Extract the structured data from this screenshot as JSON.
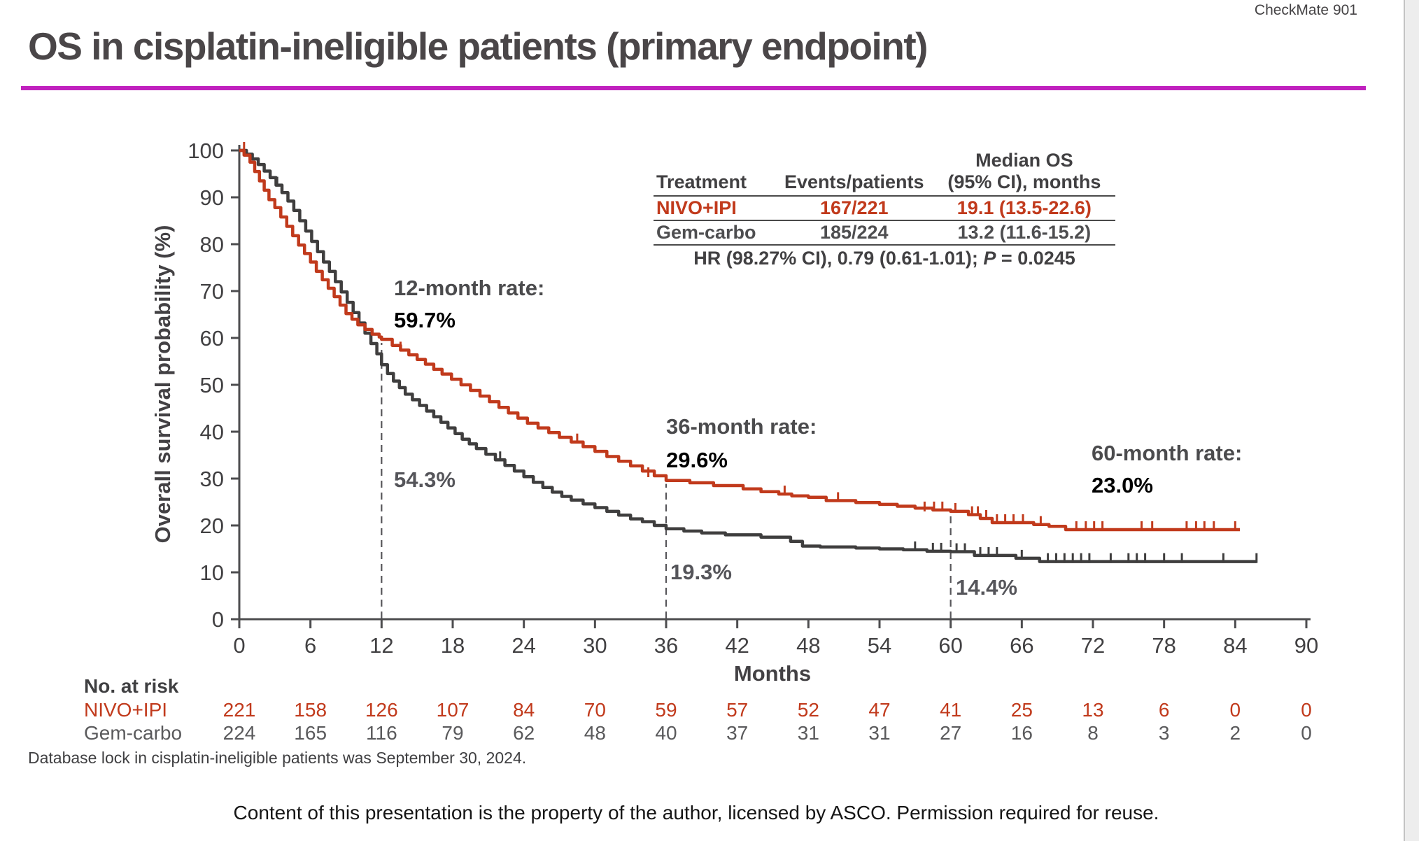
{
  "header": {
    "trial_tag": "CheckMate 901",
    "title": "OS in cisplatin-ineligible patients (primary endpoint)",
    "rule_color": "#C021BE"
  },
  "stats_table": {
    "col_headers": [
      "Treatment",
      "Events/patients",
      "Median OS",
      "(95% CI), months"
    ],
    "rows": [
      {
        "treatment": "NIVO+IPI",
        "events": "167/221",
        "median": "19.1 (13.5-22.6)"
      },
      {
        "treatment": "Gem-carbo",
        "events": "185/224",
        "median": "13.2 (11.6-15.2)"
      }
    ],
    "hr_prefix": "HR (98.27% CI), 0.79 (0.61-1.01); ",
    "hr_p": "P",
    "hr_suffix": " = 0.0245"
  },
  "chart_data": {
    "type": "line",
    "subtype": "kaplan-meier-step",
    "xlabel": "Months",
    "ylabel": "Overall survival probability (%)",
    "xlim": [
      0,
      90
    ],
    "ylim": [
      0,
      100
    ],
    "x_ticks": [
      0,
      6,
      12,
      18,
      24,
      30,
      36,
      42,
      48,
      54,
      60,
      66,
      72,
      78,
      84,
      90
    ],
    "y_ticks": [
      0,
      10,
      20,
      30,
      40,
      50,
      60,
      70,
      80,
      90,
      100
    ],
    "grid": false,
    "axis_color": "#4D4D4F",
    "tick_label_color": "#414042",
    "dashed_markers": [
      {
        "month": 12,
        "top": 59.7
      },
      {
        "month": 36,
        "top": 29.6
      },
      {
        "month": 60,
        "top": 23.0
      }
    ],
    "annotations": [
      {
        "label": "12-month rate:",
        "nivo": "59.7%",
        "gem": "54.3%"
      },
      {
        "label": "36-month rate:",
        "nivo": "29.6%",
        "gem": "19.3%"
      },
      {
        "label": "60-month rate:",
        "nivo": "23.0%",
        "gem": "14.4%"
      }
    ],
    "series": [
      {
        "name": "Gem-carbo",
        "color": "#3F3E3E",
        "points": [
          [
            0,
            100
          ],
          [
            0.6,
            99.2
          ],
          [
            1.1,
            98.2
          ],
          [
            1.6,
            97
          ],
          [
            2.1,
            95.6
          ],
          [
            2.6,
            94.2
          ],
          [
            3.1,
            92.6
          ],
          [
            3.6,
            91
          ],
          [
            4.1,
            89.2
          ],
          [
            4.6,
            87.2
          ],
          [
            5.1,
            85
          ],
          [
            5.6,
            82.8
          ],
          [
            6.1,
            80.6
          ],
          [
            6.6,
            78.4
          ],
          [
            7.1,
            76.2
          ],
          [
            7.6,
            74.2
          ],
          [
            8.1,
            72
          ],
          [
            8.6,
            69.8
          ],
          [
            9.1,
            67.6
          ],
          [
            9.6,
            65.4
          ],
          [
            10.1,
            63.2
          ],
          [
            10.6,
            61
          ],
          [
            11.1,
            58.8
          ],
          [
            11.6,
            56.6
          ],
          [
            12,
            54.3
          ],
          [
            12.5,
            52.4
          ],
          [
            13,
            50.8
          ],
          [
            13.5,
            49.4
          ],
          [
            14,
            48
          ],
          [
            14.6,
            46.8
          ],
          [
            15.2,
            45.6
          ],
          [
            15.8,
            44.4
          ],
          [
            16.4,
            43.2
          ],
          [
            17,
            42
          ],
          [
            17.6,
            40.8
          ],
          [
            18.2,
            39.6
          ],
          [
            18.8,
            38.4
          ],
          [
            19.4,
            37.4
          ],
          [
            20,
            36.4
          ],
          [
            20.8,
            35.2
          ],
          [
            21.6,
            34
          ],
          [
            22.4,
            32.8
          ],
          [
            23.2,
            31.6
          ],
          [
            24,
            30.4
          ],
          [
            24.8,
            29.2
          ],
          [
            25.6,
            28.1
          ],
          [
            26.4,
            27.1
          ],
          [
            27.2,
            26.2
          ],
          [
            28,
            25.4
          ],
          [
            29,
            24.6
          ],
          [
            30,
            23.8
          ],
          [
            31,
            23
          ],
          [
            32,
            22.2
          ],
          [
            33,
            21.4
          ],
          [
            34,
            20.8
          ],
          [
            35,
            20
          ],
          [
            36,
            19.3
          ],
          [
            37.5,
            18.8
          ],
          [
            39,
            18.4
          ],
          [
            41,
            18
          ],
          [
            44,
            17.5
          ],
          [
            46.5,
            16.6
          ],
          [
            47.5,
            15.6
          ],
          [
            49,
            15.4
          ],
          [
            52,
            15.2
          ],
          [
            54,
            15
          ],
          [
            56,
            14.8
          ],
          [
            58,
            14.5
          ],
          [
            60,
            14.4
          ],
          [
            62,
            13.6
          ],
          [
            65.5,
            13
          ],
          [
            67.5,
            12.3
          ],
          [
            85.8,
            12.3
          ]
        ],
        "censors": [
          [
            3.2,
            92.6
          ],
          [
            22,
            34
          ],
          [
            57,
            14.8
          ],
          [
            58.5,
            14.5
          ],
          [
            59.2,
            14.5
          ],
          [
            60.5,
            14.4
          ],
          [
            61.2,
            14.4
          ],
          [
            62.5,
            13.6
          ],
          [
            63.2,
            13.6
          ],
          [
            63.9,
            13.6
          ],
          [
            66,
            13
          ],
          [
            68.2,
            12.3
          ],
          [
            68.9,
            12.3
          ],
          [
            69.6,
            12.3
          ],
          [
            70.3,
            12.3
          ],
          [
            71,
            12.3
          ],
          [
            71.7,
            12.3
          ],
          [
            73.5,
            12.3
          ],
          [
            75,
            12.3
          ],
          [
            75.7,
            12.3
          ],
          [
            76.4,
            12.3
          ],
          [
            78,
            12.3
          ],
          [
            79.5,
            12.3
          ],
          [
            83,
            12.3
          ],
          [
            85.8,
            12.3
          ]
        ]
      },
      {
        "name": "NIVO+IPI",
        "color": "#C13A1C",
        "points": [
          [
            0,
            100
          ],
          [
            0.4,
            99
          ],
          [
            0.9,
            97.5
          ],
          [
            1.3,
            95.5
          ],
          [
            1.7,
            93.5
          ],
          [
            2.1,
            91.5
          ],
          [
            2.5,
            89.5
          ],
          [
            3,
            87.8
          ],
          [
            3.5,
            85.8
          ],
          [
            4,
            83.8
          ],
          [
            4.5,
            81.8
          ],
          [
            5,
            79.8
          ],
          [
            5.5,
            78
          ],
          [
            6,
            76.2
          ],
          [
            6.5,
            74.2
          ],
          [
            7,
            72.4
          ],
          [
            7.5,
            70.6
          ],
          [
            8,
            68.8
          ],
          [
            8.5,
            67
          ],
          [
            9,
            65.2
          ],
          [
            9.5,
            64
          ],
          [
            10,
            62.8
          ],
          [
            10.6,
            61.8
          ],
          [
            11.2,
            60.8
          ],
          [
            11.8,
            60.2
          ],
          [
            12,
            59.7
          ],
          [
            12.9,
            58.4
          ],
          [
            13.6,
            57.4
          ],
          [
            14.3,
            56.4
          ],
          [
            15,
            55.4
          ],
          [
            15.7,
            54.4
          ],
          [
            16.4,
            53.3
          ],
          [
            17.1,
            52.3
          ],
          [
            17.9,
            51.2
          ],
          [
            18.7,
            50
          ],
          [
            19.5,
            48.8
          ],
          [
            20.3,
            47.6
          ],
          [
            21.1,
            46.4
          ],
          [
            21.9,
            45.2
          ],
          [
            22.7,
            44
          ],
          [
            23.5,
            42.9
          ],
          [
            24.3,
            41.8
          ],
          [
            25.2,
            40.8
          ],
          [
            26.1,
            39.8
          ],
          [
            27,
            38.8
          ],
          [
            28,
            37.8
          ],
          [
            29,
            36.8
          ],
          [
            30,
            35.8
          ],
          [
            31,
            34.7
          ],
          [
            32,
            33.7
          ],
          [
            33,
            32.7
          ],
          [
            34,
            31.6
          ],
          [
            35,
            30.6
          ],
          [
            36,
            29.6
          ],
          [
            38,
            29.1
          ],
          [
            40,
            28.5
          ],
          [
            42.5,
            27.8
          ],
          [
            44,
            27.2
          ],
          [
            45.5,
            26.7
          ],
          [
            46.6,
            26.3
          ],
          [
            48,
            26
          ],
          [
            49.5,
            25.3
          ],
          [
            52,
            24.9
          ],
          [
            54,
            24.5
          ],
          [
            55.5,
            24.1
          ],
          [
            57,
            23.7
          ],
          [
            58.5,
            23.3
          ],
          [
            60,
            23
          ],
          [
            61.5,
            22.3
          ],
          [
            62.5,
            21.5
          ],
          [
            63.5,
            20.6
          ],
          [
            67,
            20.2
          ],
          [
            68.3,
            19.8
          ],
          [
            69.7,
            19.1
          ],
          [
            84.4,
            19.1
          ]
        ],
        "censors": [
          [
            0.4,
            100
          ],
          [
            13.6,
            57.4
          ],
          [
            28.5,
            37.8
          ],
          [
            34.5,
            30.6
          ],
          [
            46,
            26.7
          ],
          [
            50.5,
            25.3
          ],
          [
            57.8,
            23.3
          ],
          [
            58.6,
            23.3
          ],
          [
            59.3,
            23.3
          ],
          [
            60.4,
            23
          ],
          [
            61.8,
            22.3
          ],
          [
            62.3,
            22.3
          ],
          [
            63,
            21.5
          ],
          [
            63.9,
            20.6
          ],
          [
            64.6,
            20.6
          ],
          [
            65.3,
            20.6
          ],
          [
            66.1,
            20.6
          ],
          [
            67.6,
            20.2
          ],
          [
            70.6,
            19.1
          ],
          [
            71.4,
            19.1
          ],
          [
            72.1,
            19.1
          ],
          [
            72.8,
            19.1
          ],
          [
            76.1,
            19.1
          ],
          [
            77,
            19.1
          ],
          [
            79.9,
            19.1
          ],
          [
            80.7,
            19.1
          ],
          [
            81.4,
            19.1
          ],
          [
            82.2,
            19.1
          ],
          [
            84,
            19.1
          ]
        ]
      }
    ]
  },
  "risk_table": {
    "title": "No. at risk",
    "rows": [
      {
        "name": "NIVO+IPI",
        "color": "#C13A1C",
        "values": [
          221,
          158,
          126,
          107,
          84,
          70,
          59,
          57,
          52,
          47,
          41,
          25,
          13,
          6,
          0,
          0
        ]
      },
      {
        "name": "Gem-carbo",
        "color": "#5A5A5C",
        "values": [
          224,
          165,
          116,
          79,
          62,
          48,
          40,
          37,
          31,
          31,
          27,
          16,
          8,
          3,
          2,
          0
        ]
      }
    ]
  },
  "footnote": "Database lock in cisplatin-ineligible patients was September 30, 2024.",
  "footer": "Content of this presentation is the property of the author, licensed by ASCO. Permission required for reuse."
}
